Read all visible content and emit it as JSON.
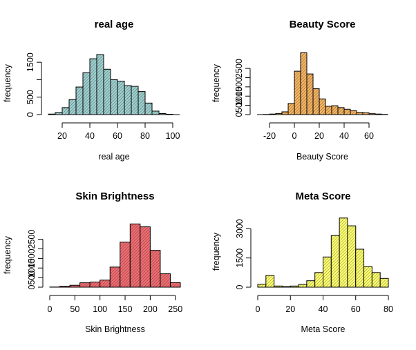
{
  "chart_data": [
    {
      "type": "bar",
      "title": "real age",
      "xlabel": "real age",
      "ylabel": "frequency",
      "fill": "#9fd0d0",
      "bin_edges": [
        10,
        15,
        20,
        25,
        30,
        35,
        40,
        45,
        50,
        55,
        60,
        65,
        70,
        75,
        80,
        85,
        90,
        95,
        100,
        105
      ],
      "values": [
        15,
        60,
        200,
        430,
        790,
        1200,
        1600,
        1720,
        1300,
        1000,
        960,
        830,
        810,
        660,
        330,
        100,
        30,
        10,
        0
      ],
      "xlim": [
        10,
        105
      ],
      "ylim": [
        0,
        1800
      ],
      "xticks": [
        20,
        40,
        60,
        80,
        100
      ],
      "yticks": [
        0,
        500,
        1000,
        1500
      ],
      "ytick_labels": [
        "0",
        "500",
        "",
        "1500"
      ]
    },
    {
      "type": "bar",
      "title": "Beauty Score",
      "xlabel": "Beauty Score",
      "ylabel": "frequency",
      "fill": "#f5b462",
      "bin_edges": [
        -30,
        -25,
        -20,
        -15,
        -10,
        -5,
        0,
        5,
        10,
        15,
        20,
        25,
        30,
        35,
        40,
        45,
        50,
        55,
        60,
        65,
        70,
        75
      ],
      "values": [
        0,
        10,
        30,
        60,
        150,
        600,
        2350,
        3350,
        2200,
        1400,
        850,
        450,
        480,
        380,
        290,
        210,
        120,
        100,
        50,
        30,
        10
      ],
      "xlim": [
        -30,
        75
      ],
      "ylim": [
        0,
        3400
      ],
      "xticks": [
        -20,
        0,
        20,
        40,
        60
      ],
      "yticks": [
        0,
        500,
        1000,
        1500,
        2000,
        2500
      ],
      "ytick_labels": [
        "0",
        "500",
        "1000",
        "1500",
        "",
        "2500"
      ]
    },
    {
      "type": "bar",
      "title": "Skin Brightness",
      "xlabel": "Skin Brightness",
      "ylabel": "frequency",
      "fill": "#f06d72",
      "bin_edges": [
        0,
        20,
        40,
        60,
        80,
        100,
        120,
        140,
        160,
        180,
        200,
        220,
        240,
        260
      ],
      "values": [
        10,
        50,
        100,
        230,
        270,
        370,
        1050,
        2350,
        3300,
        3150,
        1920,
        700,
        240
      ],
      "xlim": [
        0,
        260
      ],
      "ylim": [
        0,
        3350
      ],
      "xticks": [
        0,
        50,
        100,
        150,
        200,
        250
      ],
      "yticks": [
        0,
        500,
        1000,
        1500,
        2000,
        2500
      ],
      "ytick_labels": [
        "0",
        "500",
        "1000",
        "1500",
        "",
        "2500"
      ]
    },
    {
      "type": "bar",
      "title": "Meta Score",
      "xlabel": "Meta Score",
      "ylabel": "frequency",
      "fill": "#ffff70",
      "bin_edges": [
        0,
        5,
        10,
        15,
        20,
        25,
        30,
        35,
        40,
        45,
        50,
        55,
        60,
        65,
        70,
        75,
        80
      ],
      "values": [
        150,
        600,
        60,
        30,
        60,
        140,
        330,
        750,
        1550,
        2650,
        3550,
        3150,
        1950,
        1050,
        750,
        450
      ],
      "xlim": [
        0,
        80
      ],
      "ylim": [
        0,
        3650
      ],
      "xticks": [
        0,
        20,
        40,
        60,
        80
      ],
      "yticks": [
        0,
        1500,
        3000
      ],
      "ytick_labels": [
        "0",
        "1500",
        "3000"
      ]
    }
  ]
}
